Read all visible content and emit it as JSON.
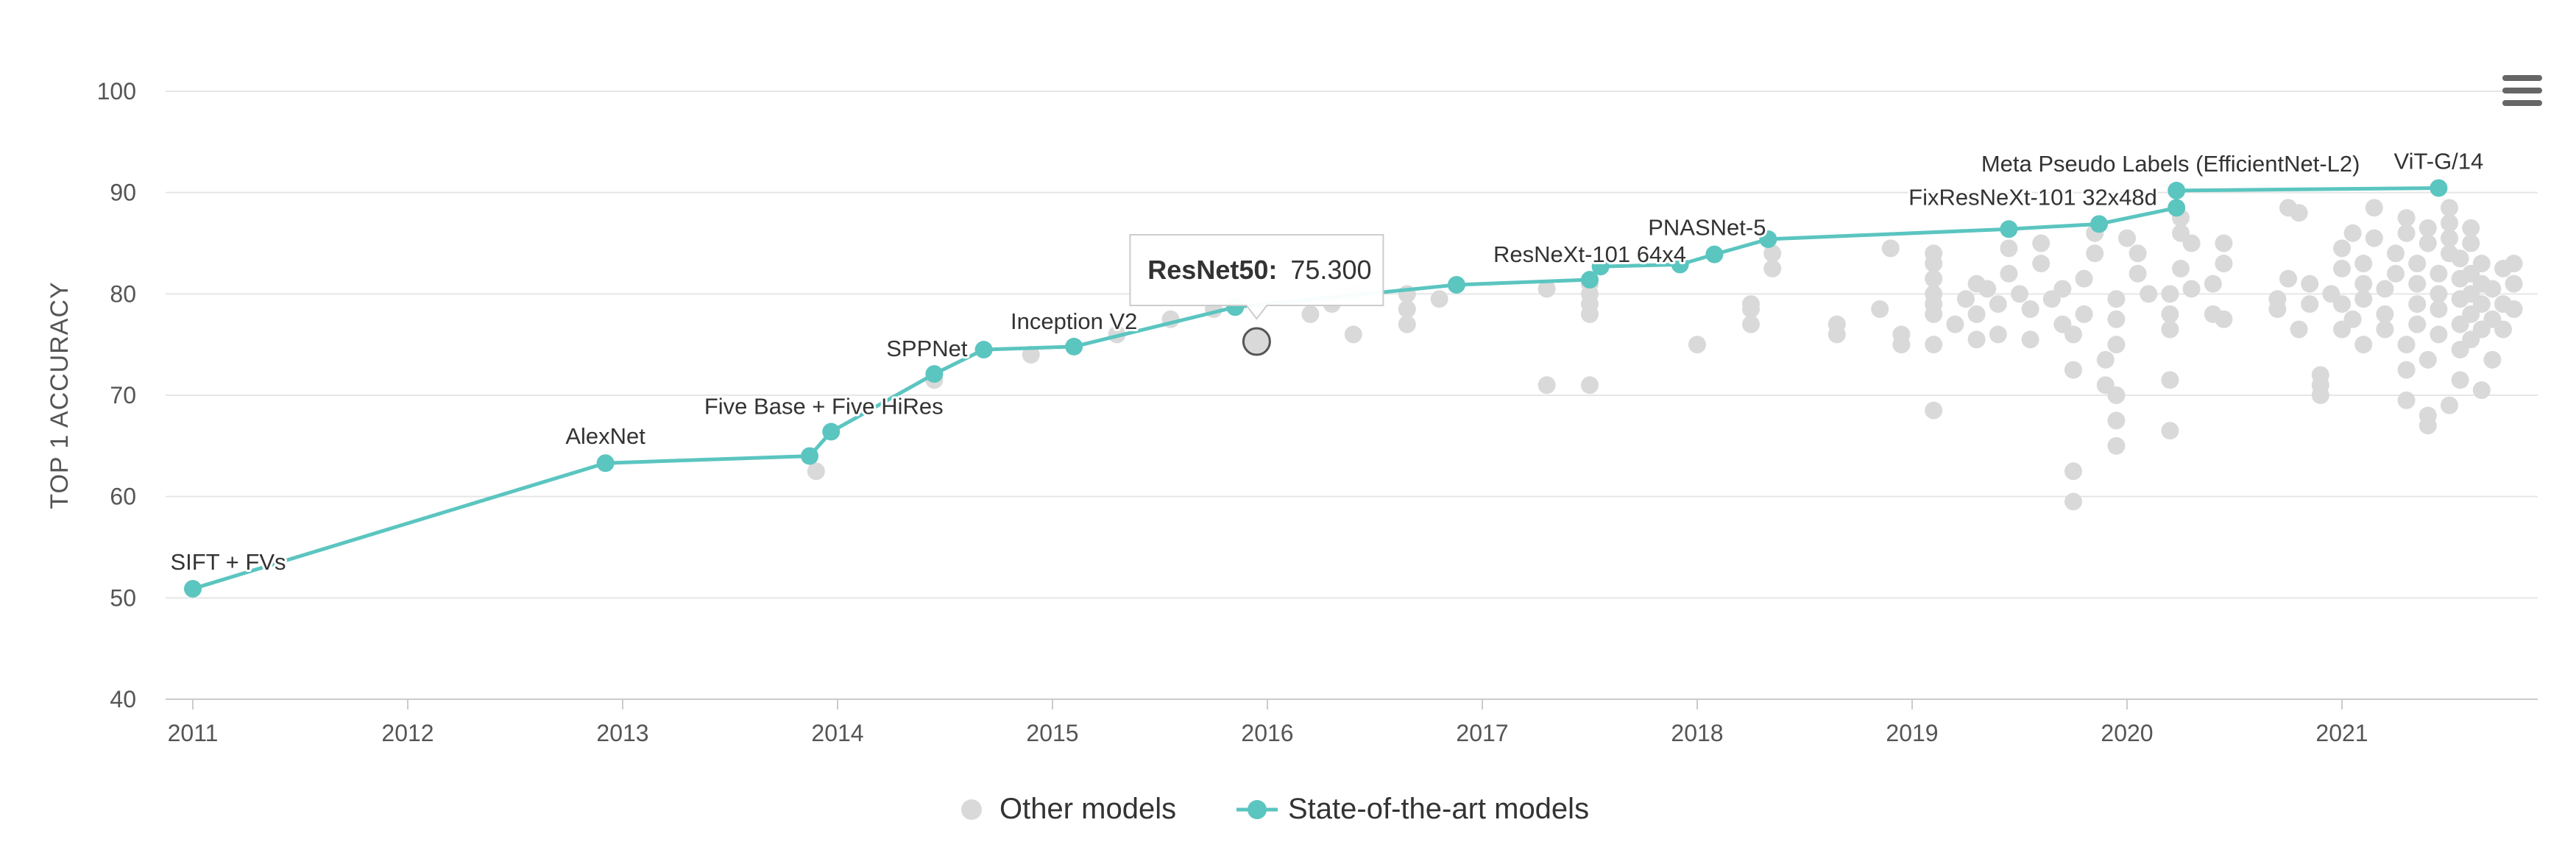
{
  "chart_data": {
    "type": "scatter",
    "ylabel": "TOP 1 ACCURACY",
    "xlabel": "",
    "xlim": [
      2011,
      2021.85
    ],
    "ylim": [
      40,
      100
    ],
    "x_ticks": [
      "2011",
      "2012",
      "2013",
      "2014",
      "2015",
      "2016",
      "2017",
      "2018",
      "2019",
      "2020",
      "2021"
    ],
    "y_ticks": [
      "40",
      "50",
      "60",
      "70",
      "80",
      "90",
      "100"
    ],
    "grid": true,
    "legend_position": "bottom-center",
    "colors": {
      "other": "#d9d9d9",
      "sota": "#5bc5c0"
    },
    "series": [
      {
        "name": "Other models",
        "type": "scatter",
        "points": [
          [
            2013.9,
            62.5
          ],
          [
            2014.45,
            71.5
          ],
          [
            2014.9,
            74
          ],
          [
            2015.3,
            76
          ],
          [
            2015.55,
            77.5
          ],
          [
            2015.75,
            78.5
          ],
          [
            2016.2,
            78
          ],
          [
            2016.3,
            79
          ],
          [
            2016.4,
            76
          ],
          [
            2016.4,
            80
          ],
          [
            2016.65,
            77
          ],
          [
            2016.65,
            78.5
          ],
          [
            2016.65,
            80
          ],
          [
            2016.8,
            79.5
          ],
          [
            2017.3,
            71
          ],
          [
            2017.3,
            80.5
          ],
          [
            2017.5,
            71
          ],
          [
            2017.5,
            78
          ],
          [
            2017.5,
            79
          ],
          [
            2017.5,
            80
          ],
          [
            2017.5,
            81
          ],
          [
            2018.0,
            75
          ],
          [
            2018.25,
            77
          ],
          [
            2018.25,
            78.5
          ],
          [
            2018.25,
            79
          ],
          [
            2018.35,
            82.5
          ],
          [
            2018.35,
            84
          ],
          [
            2018.65,
            76
          ],
          [
            2018.65,
            77
          ],
          [
            2018.85,
            78.5
          ],
          [
            2018.9,
            84.5
          ],
          [
            2018.95,
            75
          ],
          [
            2018.95,
            76
          ],
          [
            2019.1,
            68.5
          ],
          [
            2019.1,
            75
          ],
          [
            2019.1,
            78
          ],
          [
            2019.1,
            79
          ],
          [
            2019.1,
            80
          ],
          [
            2019.1,
            81.5
          ],
          [
            2019.1,
            83
          ],
          [
            2019.1,
            84
          ],
          [
            2019.2,
            77
          ],
          [
            2019.25,
            79.5
          ],
          [
            2019.3,
            75.5
          ],
          [
            2019.3,
            78
          ],
          [
            2019.3,
            81
          ],
          [
            2019.35,
            80.5
          ],
          [
            2019.4,
            76
          ],
          [
            2019.4,
            79
          ],
          [
            2019.45,
            82
          ],
          [
            2019.45,
            84.5
          ],
          [
            2019.5,
            80
          ],
          [
            2019.55,
            75.5
          ],
          [
            2019.55,
            78.5
          ],
          [
            2019.6,
            83
          ],
          [
            2019.6,
            85
          ],
          [
            2019.65,
            79.5
          ],
          [
            2019.7,
            77
          ],
          [
            2019.7,
            80.5
          ],
          [
            2019.75,
            62.5
          ],
          [
            2019.75,
            59.5
          ],
          [
            2019.75,
            72.5
          ],
          [
            2019.75,
            76
          ],
          [
            2019.8,
            78
          ],
          [
            2019.8,
            81.5
          ],
          [
            2019.85,
            84
          ],
          [
            2019.85,
            86
          ],
          [
            2019.9,
            71
          ],
          [
            2019.9,
            73.5
          ],
          [
            2019.95,
            65
          ],
          [
            2019.95,
            67.5
          ],
          [
            2019.95,
            70
          ],
          [
            2019.95,
            75
          ],
          [
            2019.95,
            77.5
          ],
          [
            2019.95,
            79.5
          ],
          [
            2020.0,
            85.5
          ],
          [
            2020.05,
            82
          ],
          [
            2020.05,
            84
          ],
          [
            2020.1,
            80
          ],
          [
            2020.2,
            66.5
          ],
          [
            2020.2,
            71.5
          ],
          [
            2020.2,
            76.5
          ],
          [
            2020.2,
            78
          ],
          [
            2020.2,
            80
          ],
          [
            2020.25,
            82.5
          ],
          [
            2020.25,
            86
          ],
          [
            2020.25,
            87.5
          ],
          [
            2020.3,
            80.5
          ],
          [
            2020.3,
            85
          ],
          [
            2020.4,
            78
          ],
          [
            2020.4,
            81
          ],
          [
            2020.45,
            83
          ],
          [
            2020.45,
            85
          ],
          [
            2020.45,
            77.5
          ],
          [
            2020.7,
            78.5
          ],
          [
            2020.7,
            79.5
          ],
          [
            2020.75,
            81.5
          ],
          [
            2020.75,
            88.5
          ],
          [
            2020.8,
            88
          ],
          [
            2020.8,
            76.5
          ],
          [
            2020.85,
            79
          ],
          [
            2020.85,
            81
          ],
          [
            2020.9,
            70
          ],
          [
            2020.9,
            71
          ],
          [
            2020.9,
            72
          ],
          [
            2020.95,
            80
          ],
          [
            2021.0,
            76.5
          ],
          [
            2021.0,
            79
          ],
          [
            2021.0,
            82.5
          ],
          [
            2021.0,
            84.5
          ],
          [
            2021.05,
            77.5
          ],
          [
            2021.05,
            86
          ],
          [
            2021.1,
            75
          ],
          [
            2021.1,
            79.5
          ],
          [
            2021.1,
            81
          ],
          [
            2021.1,
            83
          ],
          [
            2021.15,
            85.5
          ],
          [
            2021.15,
            88.5
          ],
          [
            2021.2,
            76.5
          ],
          [
            2021.2,
            78
          ],
          [
            2021.2,
            80.5
          ],
          [
            2021.25,
            82
          ],
          [
            2021.25,
            84
          ],
          [
            2021.3,
            86
          ],
          [
            2021.3,
            87.5
          ],
          [
            2021.3,
            69.5
          ],
          [
            2021.3,
            72.5
          ],
          [
            2021.3,
            75
          ],
          [
            2021.35,
            77
          ],
          [
            2021.35,
            79
          ],
          [
            2021.35,
            81
          ],
          [
            2021.35,
            83
          ],
          [
            2021.4,
            85
          ],
          [
            2021.4,
            86.5
          ],
          [
            2021.4,
            68
          ],
          [
            2021.4,
            67
          ],
          [
            2021.4,
            73.5
          ],
          [
            2021.45,
            76
          ],
          [
            2021.45,
            78.5
          ],
          [
            2021.45,
            80
          ],
          [
            2021.45,
            82
          ],
          [
            2021.5,
            84
          ],
          [
            2021.5,
            85.5
          ],
          [
            2021.5,
            87
          ],
          [
            2021.5,
            88.5
          ],
          [
            2021.5,
            69
          ],
          [
            2021.55,
            71.5
          ],
          [
            2021.55,
            74.5
          ],
          [
            2021.55,
            77
          ],
          [
            2021.55,
            79.5
          ],
          [
            2021.55,
            81.5
          ],
          [
            2021.55,
            83.5
          ],
          [
            2021.6,
            85
          ],
          [
            2021.6,
            86.5
          ],
          [
            2021.6,
            75.5
          ],
          [
            2021.6,
            78
          ],
          [
            2021.6,
            80
          ],
          [
            2021.6,
            82
          ],
          [
            2021.65,
            70.5
          ],
          [
            2021.65,
            76.5
          ],
          [
            2021.65,
            79
          ],
          [
            2021.65,
            81
          ],
          [
            2021.65,
            83
          ],
          [
            2021.7,
            73.5
          ],
          [
            2021.7,
            77.5
          ],
          [
            2021.7,
            80.5
          ],
          [
            2021.75,
            82.5
          ],
          [
            2021.75,
            79
          ],
          [
            2021.75,
            76.5
          ],
          [
            2021.8,
            81
          ],
          [
            2021.8,
            78.5
          ],
          [
            2021.8,
            83
          ]
        ]
      },
      {
        "name": "State-of-the-art models",
        "type": "line",
        "points": [
          [
            2011.0,
            50.9
          ],
          [
            2012.92,
            63.3
          ],
          [
            2013.87,
            64.0
          ],
          [
            2013.97,
            66.4
          ],
          [
            2014.45,
            72.1
          ],
          [
            2014.68,
            74.5
          ],
          [
            2015.1,
            74.8
          ],
          [
            2015.85,
            78.7
          ],
          [
            2016.88,
            80.9
          ],
          [
            2017.5,
            81.4
          ],
          [
            2017.55,
            82.7
          ],
          [
            2017.92,
            82.9
          ],
          [
            2018.08,
            83.9
          ],
          [
            2018.33,
            85.4
          ],
          [
            2019.45,
            86.4
          ],
          [
            2019.87,
            86.9
          ],
          [
            2020.23,
            88.5
          ],
          [
            2020.23,
            90.2
          ],
          [
            2021.45,
            90.45
          ]
        ],
        "labels": [
          {
            "text": "SIFT + FVs",
            "at": 0
          },
          {
            "text": "AlexNet",
            "at": 1
          },
          {
            "text": "Five Base + Five HiRes",
            "at": 3
          },
          {
            "text": "SPPNet",
            "at": 4
          },
          {
            "text": "Inception V2",
            "at": 6
          },
          {
            "text": "ResNeXt-101 64x4",
            "at": 9
          },
          {
            "text": "PNASNet-5",
            "at": 12
          },
          {
            "text": "FixResNeXt-101 32x48d",
            "at": 15
          },
          {
            "text": "Meta Pseudo Labels (EfficientNet-L2)",
            "at": 17
          },
          {
            "text": "ViT-G/14",
            "at": 18
          }
        ]
      }
    ],
    "hover": {
      "x": 2015.95,
      "y": 75.3,
      "name": "ResNet50:",
      "value": "75.300"
    },
    "legend": [
      "Other models",
      "State-of-the-art models"
    ]
  },
  "menu": {
    "icon": "hamburger-menu-icon"
  }
}
